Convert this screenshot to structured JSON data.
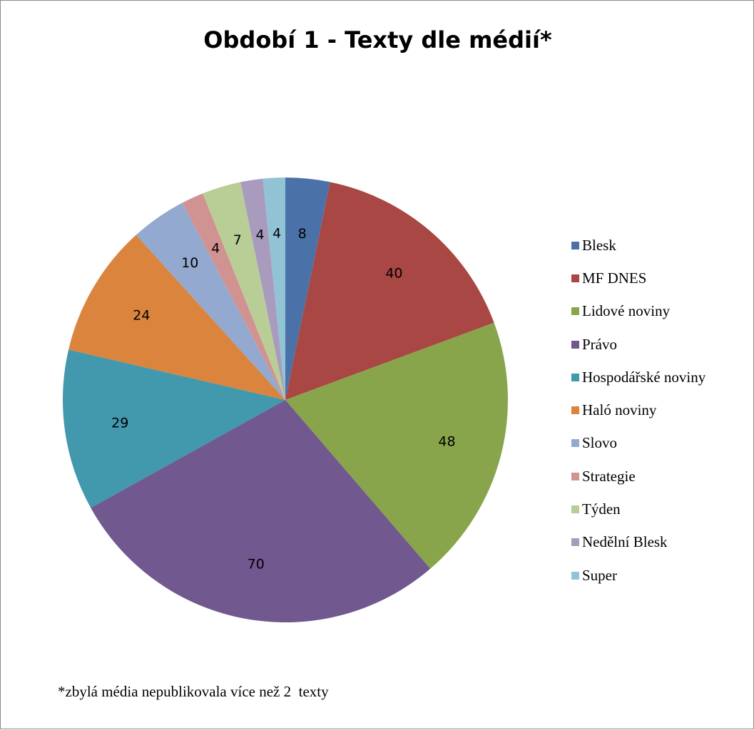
{
  "chart_data": {
    "type": "pie",
    "title": "Období 1 - Texty dle médií*",
    "footnote": "*zbylá média nepublikovala více než 2  texty",
    "legend_position": "right",
    "categories": [
      "Blesk",
      "MF DNES",
      "Lidové noviny",
      "Právo",
      "Hospodářské noviny",
      "Haló noviny",
      "Slovo",
      "Strategie",
      "Týden",
      "Nedělní Blesk",
      "Super"
    ],
    "values": [
      8,
      40,
      48,
      70,
      29,
      24,
      10,
      4,
      7,
      4,
      4
    ],
    "colors": [
      "#4a72a8",
      "#a94744",
      "#88a54c",
      "#71588f",
      "#4298ad",
      "#db843d",
      "#93a9cf",
      "#d19392",
      "#b9cd96",
      "#a99bbd",
      "#92c3d5"
    ]
  }
}
